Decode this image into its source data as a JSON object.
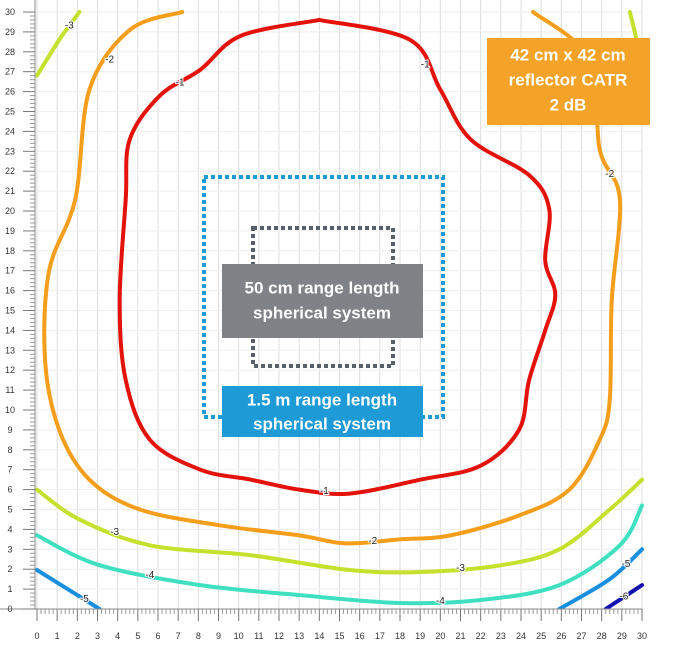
{
  "chart_data": {
    "type": "contour",
    "xlim": [
      0,
      30
    ],
    "ylim": [
      0,
      30
    ],
    "xticks": [
      0,
      1,
      2,
      3,
      4,
      5,
      6,
      7,
      8,
      9,
      10,
      11,
      12,
      13,
      14,
      15,
      16,
      17,
      18,
      19,
      20,
      21,
      22,
      23,
      24,
      25,
      26,
      27,
      28,
      29,
      30
    ],
    "yticks": [
      0,
      1,
      2,
      3,
      4,
      5,
      6,
      7,
      8,
      9,
      10,
      11,
      12,
      13,
      14,
      15,
      16,
      17,
      18,
      19,
      20,
      21,
      22,
      23,
      24,
      25,
      26,
      27,
      28,
      29,
      30
    ],
    "grid": true,
    "series": [
      {
        "level": -1,
        "color": "#e3120b",
        "x": [
          14.0,
          18.5,
          20.0,
          21.5,
          24.4,
          25.4,
          25.2,
          25.7,
          25.2,
          24.4,
          23.9,
          22.0,
          19.0,
          15.5,
          13.0,
          10.6,
          8.1,
          5.6,
          4.4,
          4.1,
          4.4,
          4.6,
          6.1,
          8.1,
          10.1,
          14.0
        ],
        "y": [
          29.6,
          28.6,
          26.1,
          23.6,
          21.8,
          20.1,
          17.5,
          15.8,
          14.0,
          11.5,
          9.0,
          7.2,
          6.5,
          5.8,
          6.0,
          6.5,
          7.0,
          8.5,
          11.5,
          15.5,
          20.6,
          23.6,
          25.8,
          27.1,
          28.8,
          29.6
        ]
      },
      {
        "level": -2,
        "color": "#f59e1b",
        "x": [
          7.2,
          4.6,
          2.6,
          1.9,
          0.6,
          0.4,
          1.1,
          2.6,
          5.1,
          9.1,
          13.0,
          15.3,
          18.0,
          20.5,
          23.9,
          26.4,
          27.9,
          28.4,
          28.5,
          28.9,
          27.9,
          27.4,
          24.6
        ],
        "y": [
          30.0,
          29.1,
          26.1,
          20.6,
          17.0,
          12.5,
          9.0,
          6.5,
          5.0,
          4.2,
          3.7,
          3.3,
          3.5,
          3.7,
          4.7,
          6.0,
          8.5,
          10.5,
          15.5,
          20.6,
          23.1,
          27.6,
          30.0
        ]
      },
      {
        "level": -3,
        "color": "#c6e02e",
        "x": [
          0,
          2.1,
          5.6,
          10.6,
          15.5,
          19.0,
          23.0,
          25.9,
          28.4,
          30,
          null,
          0,
          1.1,
          2.1,
          null,
          29.4,
          29.9,
          30
        ],
        "y": [
          6.0,
          4.5,
          3.2,
          2.7,
          1.96,
          1.86,
          2.2,
          3.0,
          5.0,
          6.5,
          null,
          26.8,
          28.6,
          30,
          null,
          30,
          27.6,
          24.6
        ]
      },
      {
        "level": -4,
        "color": "#3ee0bf",
        "x": [
          0,
          3.1,
          8.1,
          13.0,
          18.0,
          22.0,
          25.9,
          28.9,
          30
        ],
        "y": [
          3.7,
          2.2,
          1.2,
          0.7,
          0.3,
          0.45,
          1.2,
          3.2,
          5.2
        ]
      },
      {
        "level": -5,
        "color": "#1a8fe0",
        "x": [
          0,
          1.6,
          3.1,
          null,
          25.9,
          28.4,
          30
        ],
        "y": [
          1.96,
          0.95,
          0,
          null,
          0,
          1.5,
          3.0
        ]
      },
      {
        "level": -6,
        "color": "#1212b0",
        "x": [
          28.2,
          30
        ],
        "y": [
          0,
          1.2
        ]
      }
    ],
    "annotations": {
      "catr": [
        "42 cm x 42 cm",
        "reflector CATR",
        "2 dB"
      ],
      "small": [
        "50 cm range length",
        "spherical system"
      ],
      "large": [
        "1.5 m range length",
        "spherical system"
      ]
    }
  }
}
